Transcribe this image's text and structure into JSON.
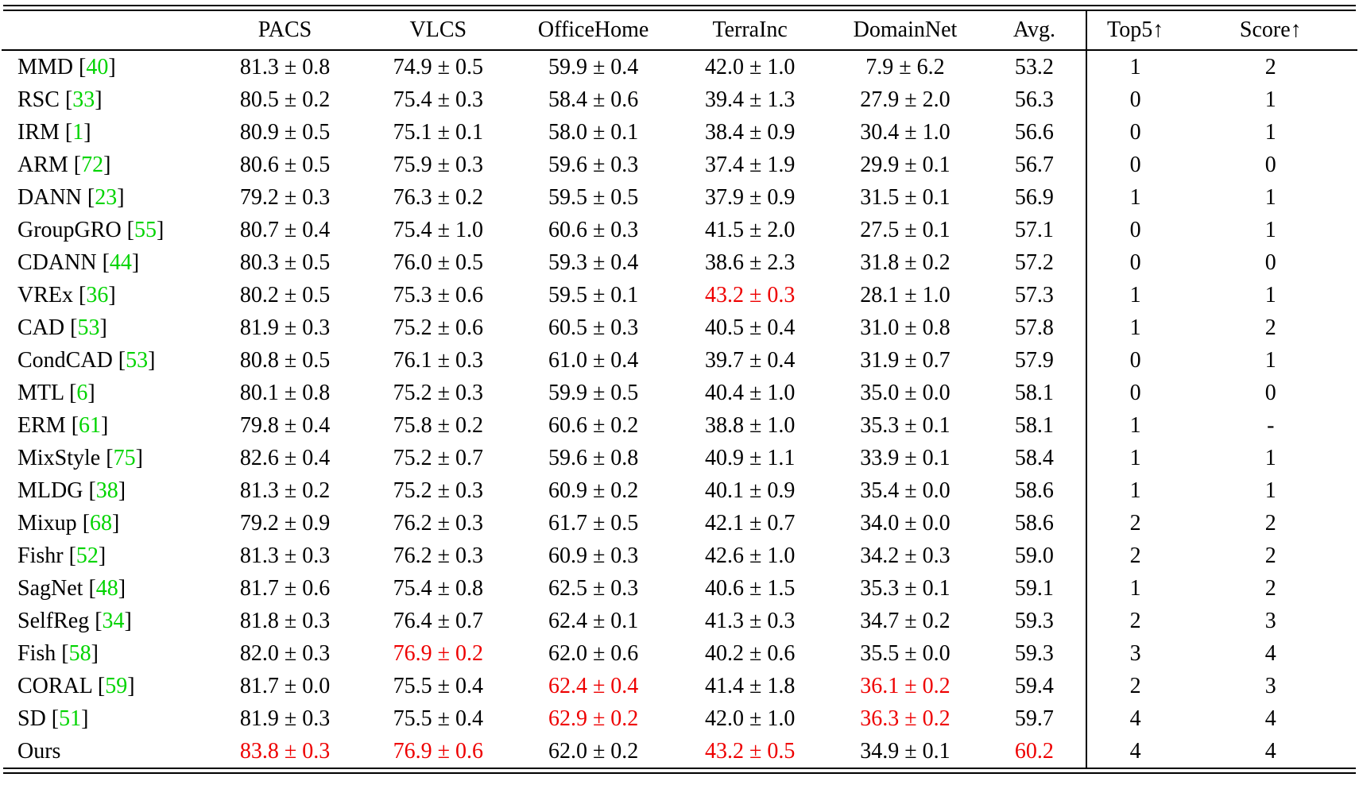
{
  "colors": {
    "citation_green": "#00d400",
    "highlight_red": "#ee0000",
    "text_black": "#000000"
  },
  "table": {
    "columns": [
      "",
      "PACS",
      "VLCS",
      "OfficeHome",
      "TerraInc",
      "DomainNet",
      "Avg.",
      "Top5↑",
      "Score↑"
    ],
    "rows": [
      {
        "method": "MMD",
        "cite": "40",
        "values": [
          "81.3 ± 0.8",
          "74.9 ± 0.5",
          "59.9 ± 0.4",
          "42.0 ± 1.0",
          "7.9 ± 6.2",
          "53.2",
          "1",
          "2"
        ],
        "red": []
      },
      {
        "method": "RSC",
        "cite": "33",
        "values": [
          "80.5 ± 0.2",
          "75.4 ± 0.3",
          "58.4 ± 0.6",
          "39.4 ± 1.3",
          "27.9 ± 2.0",
          "56.3",
          "0",
          "1"
        ],
        "red": []
      },
      {
        "method": "IRM",
        "cite": "1",
        "values": [
          "80.9 ± 0.5",
          "75.1 ± 0.1",
          "58.0 ± 0.1",
          "38.4 ± 0.9",
          "30.4 ± 1.0",
          "56.6",
          "0",
          "1"
        ],
        "red": []
      },
      {
        "method": "ARM",
        "cite": "72",
        "values": [
          "80.6 ± 0.5",
          "75.9 ± 0.3",
          "59.6 ± 0.3",
          "37.4 ± 1.9",
          "29.9 ± 0.1",
          "56.7",
          "0",
          "0"
        ],
        "red": []
      },
      {
        "method": "DANN",
        "cite": "23",
        "values": [
          "79.2 ± 0.3",
          "76.3 ± 0.2",
          "59.5 ± 0.5",
          "37.9 ± 0.9",
          "31.5 ± 0.1",
          "56.9",
          "1",
          "1"
        ],
        "red": []
      },
      {
        "method": "GroupGRO",
        "cite": "55",
        "values": [
          "80.7 ± 0.4",
          "75.4 ± 1.0",
          "60.6 ± 0.3",
          "41.5 ± 2.0",
          "27.5 ± 0.1",
          "57.1",
          "0",
          "1"
        ],
        "red": []
      },
      {
        "method": "CDANN",
        "cite": "44",
        "values": [
          "80.3 ± 0.5",
          "76.0 ± 0.5",
          "59.3 ± 0.4",
          "38.6 ± 2.3",
          "31.8 ± 0.2",
          "57.2",
          "0",
          "0"
        ],
        "red": []
      },
      {
        "method": "VREx",
        "cite": "36",
        "values": [
          "80.2 ± 0.5",
          "75.3 ± 0.6",
          "59.5 ± 0.1",
          "43.2 ± 0.3",
          "28.1 ± 1.0",
          "57.3",
          "1",
          "1"
        ],
        "red": [
          3
        ]
      },
      {
        "method": "CAD",
        "cite": "53",
        "values": [
          "81.9 ± 0.3",
          "75.2 ± 0.6",
          "60.5 ± 0.3",
          "40.5 ± 0.4",
          "31.0 ± 0.8",
          "57.8",
          "1",
          "2"
        ],
        "red": []
      },
      {
        "method": "CondCAD",
        "cite": "53",
        "values": [
          "80.8 ± 0.5",
          "76.1 ± 0.3",
          "61.0 ± 0.4",
          "39.7 ± 0.4",
          "31.9 ± 0.7",
          "57.9",
          "0",
          "1"
        ],
        "red": []
      },
      {
        "method": "MTL",
        "cite": "6",
        "values": [
          "80.1 ± 0.8",
          "75.2 ± 0.3",
          "59.9 ± 0.5",
          "40.4 ± 1.0",
          "35.0 ± 0.0",
          "58.1",
          "0",
          "0"
        ],
        "red": []
      },
      {
        "method": "ERM",
        "cite": "61",
        "values": [
          "79.8 ± 0.4",
          "75.8 ± 0.2",
          "60.6 ± 0.2",
          "38.8 ± 1.0",
          "35.3 ± 0.1",
          "58.1",
          "1",
          "-"
        ],
        "red": []
      },
      {
        "method": "MixStyle",
        "cite": "75",
        "values": [
          "82.6 ± 0.4",
          "75.2 ± 0.7",
          "59.6 ± 0.8",
          "40.9 ± 1.1",
          "33.9 ± 0.1",
          "58.4",
          "1",
          "1"
        ],
        "red": []
      },
      {
        "method": "MLDG",
        "cite": "38",
        "values": [
          "81.3 ± 0.2",
          "75.2 ± 0.3",
          "60.9 ± 0.2",
          "40.1 ± 0.9",
          "35.4 ± 0.0",
          "58.6",
          "1",
          "1"
        ],
        "red": []
      },
      {
        "method": "Mixup",
        "cite": "68",
        "values": [
          "79.2 ± 0.9",
          "76.2 ± 0.3",
          "61.7 ± 0.5",
          "42.1 ± 0.7",
          "34.0 ± 0.0",
          "58.6",
          "2",
          "2"
        ],
        "red": []
      },
      {
        "method": "Fishr",
        "cite": "52",
        "values": [
          "81.3 ± 0.3",
          "76.2 ± 0.3",
          "60.9 ± 0.3",
          "42.6 ± 1.0",
          "34.2 ± 0.3",
          "59.0",
          "2",
          "2"
        ],
        "red": []
      },
      {
        "method": "SagNet",
        "cite": "48",
        "values": [
          "81.7 ± 0.6",
          "75.4 ± 0.8",
          "62.5 ± 0.3",
          "40.6 ± 1.5",
          "35.3 ± 0.1",
          "59.1",
          "1",
          "2"
        ],
        "red": []
      },
      {
        "method": "SelfReg",
        "cite": "34",
        "values": [
          "81.8 ± 0.3",
          "76.4 ± 0.7",
          "62.4 ± 0.1",
          "41.3 ± 0.3",
          "34.7 ± 0.2",
          "59.3",
          "2",
          "3"
        ],
        "red": []
      },
      {
        "method": "Fish",
        "cite": "58",
        "values": [
          "82.0 ± 0.3",
          "76.9 ± 0.2",
          "62.0 ± 0.6",
          "40.2 ± 0.6",
          "35.5 ± 0.0",
          "59.3",
          "3",
          "4"
        ],
        "red": [
          1
        ]
      },
      {
        "method": "CORAL",
        "cite": "59",
        "values": [
          "81.7 ± 0.0",
          "75.5 ± 0.4",
          "62.4 ± 0.4",
          "41.4 ± 1.8",
          "36.1 ± 0.2",
          "59.4",
          "2",
          "3"
        ],
        "red": [
          2,
          4
        ]
      },
      {
        "method": "SD",
        "cite": "51",
        "values": [
          "81.9 ± 0.3",
          "75.5 ± 0.4",
          "62.9 ± 0.2",
          "42.0 ± 1.0",
          "36.3 ± 0.2",
          "59.7",
          "4",
          "4"
        ],
        "red": [
          2,
          4
        ]
      },
      {
        "method": "Ours",
        "cite": "",
        "values": [
          "83.8 ± 0.3",
          "76.9 ± 0.6",
          "62.0 ± 0.2",
          "43.2 ± 0.5",
          "34.9 ± 0.1",
          "60.2",
          "4",
          "4"
        ],
        "red": [
          0,
          1,
          3,
          5
        ]
      }
    ]
  }
}
